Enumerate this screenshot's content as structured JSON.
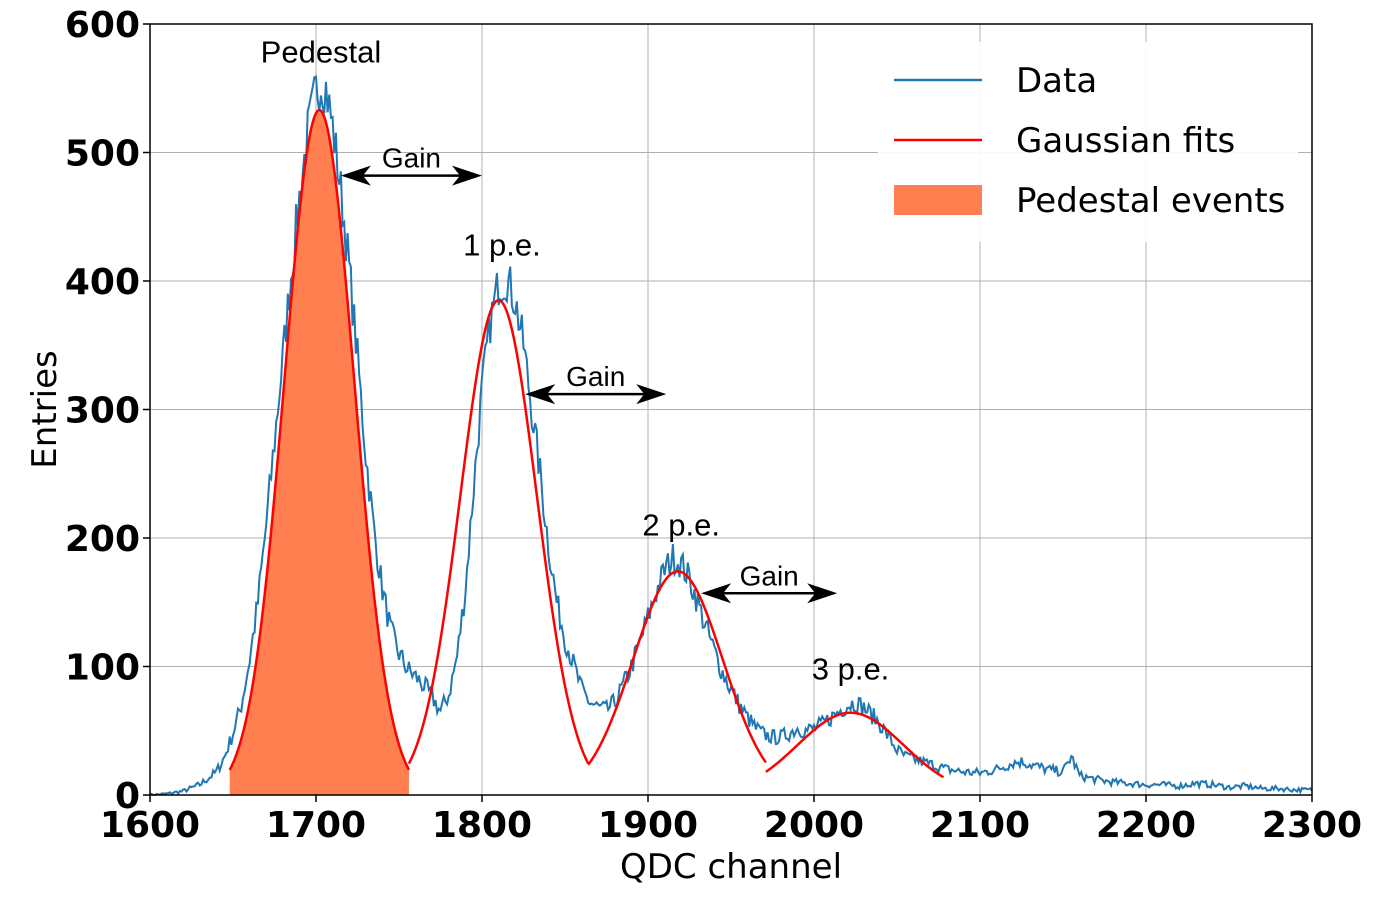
{
  "chart_data": {
    "type": "line",
    "xlabel": "QDC channel",
    "ylabel": "Entries",
    "xlim": [
      1600,
      2300
    ],
    "ylim": [
      0,
      600
    ],
    "xticks": [
      1600,
      1700,
      1800,
      1900,
      2000,
      2100,
      2200,
      2300
    ],
    "yticks": [
      0,
      100,
      200,
      300,
      400,
      500,
      600
    ],
    "grid": true,
    "legend_position": "top-right",
    "legend": [
      {
        "label": "Data",
        "kind": "line",
        "color": "#1f77b4"
      },
      {
        "label": "Gaussian fits",
        "kind": "line",
        "color": "#ff0000"
      },
      {
        "label": "Pedestal events",
        "kind": "patch",
        "color": "#ff7f50"
      }
    ],
    "data_series": {
      "name": "Data",
      "color": "#1f77b4",
      "points": [
        [
          1600,
          0
        ],
        [
          1610,
          1
        ],
        [
          1620,
          3
        ],
        [
          1630,
          8
        ],
        [
          1640,
          18
        ],
        [
          1645,
          30
        ],
        [
          1650,
          48
        ],
        [
          1655,
          70
        ],
        [
          1660,
          105
        ],
        [
          1665,
          150
        ],
        [
          1670,
          210
        ],
        [
          1675,
          275
        ],
        [
          1680,
          340
        ],
        [
          1685,
          405
        ],
        [
          1690,
          465
        ],
        [
          1695,
          515
        ],
        [
          1700,
          548
        ],
        [
          1703,
          555
        ],
        [
          1706,
          550
        ],
        [
          1710,
          520
        ],
        [
          1715,
          470
        ],
        [
          1720,
          410
        ],
        [
          1725,
          340
        ],
        [
          1730,
          265
        ],
        [
          1735,
          205
        ],
        [
          1740,
          160
        ],
        [
          1745,
          128
        ],
        [
          1750,
          110
        ],
        [
          1755,
          98
        ],
        [
          1760,
          92
        ],
        [
          1765,
          85
        ],
        [
          1770,
          76
        ],
        [
          1775,
          65
        ],
        [
          1780,
          78
        ],
        [
          1785,
          108
        ],
        [
          1790,
          160
        ],
        [
          1795,
          240
        ],
        [
          1800,
          315
        ],
        [
          1805,
          368
        ],
        [
          1810,
          398
        ],
        [
          1815,
          402
        ],
        [
          1820,
          385
        ],
        [
          1825,
          350
        ],
        [
          1830,
          300
        ],
        [
          1835,
          250
        ],
        [
          1840,
          195
        ],
        [
          1845,
          150
        ],
        [
          1850,
          122
        ],
        [
          1855,
          102
        ],
        [
          1860,
          82
        ],
        [
          1865,
          72
        ],
        [
          1870,
          68
        ],
        [
          1875,
          66
        ],
        [
          1880,
          72
        ],
        [
          1885,
          85
        ],
        [
          1890,
          100
        ],
        [
          1895,
          118
        ],
        [
          1900,
          138
        ],
        [
          1905,
          158
        ],
        [
          1910,
          175
        ],
        [
          1915,
          185
        ],
        [
          1920,
          180
        ],
        [
          1925,
          168
        ],
        [
          1930,
          150
        ],
        [
          1935,
          130
        ],
        [
          1940,
          112
        ],
        [
          1945,
          95
        ],
        [
          1950,
          82
        ],
        [
          1955,
          70
        ],
        [
          1960,
          60
        ],
        [
          1965,
          52
        ],
        [
          1970,
          47
        ],
        [
          1975,
          45
        ],
        [
          1980,
          45
        ],
        [
          1985,
          48
        ],
        [
          1990,
          52
        ],
        [
          1995,
          50
        ],
        [
          2000,
          52
        ],
        [
          2005,
          55
        ],
        [
          2010,
          60
        ],
        [
          2015,
          65
        ],
        [
          2020,
          70
        ],
        [
          2025,
          72
        ],
        [
          2030,
          68
        ],
        [
          2035,
          62
        ],
        [
          2040,
          55
        ],
        [
          2045,
          45
        ],
        [
          2050,
          35
        ],
        [
          2055,
          30
        ],
        [
          2060,
          28
        ],
        [
          2065,
          26
        ],
        [
          2070,
          24
        ],
        [
          2075,
          22
        ],
        [
          2080,
          20
        ],
        [
          2090,
          18
        ],
        [
          2100,
          17
        ],
        [
          2110,
          20
        ],
        [
          2120,
          25
        ],
        [
          2125,
          26
        ],
        [
          2130,
          24
        ],
        [
          2140,
          20
        ],
        [
          2150,
          18
        ],
        [
          2155,
          30
        ],
        [
          2160,
          15
        ],
        [
          2170,
          12
        ],
        [
          2180,
          10
        ],
        [
          2190,
          9
        ],
        [
          2200,
          8
        ],
        [
          2210,
          8
        ],
        [
          2220,
          7
        ],
        [
          2230,
          9
        ],
        [
          2240,
          8
        ],
        [
          2250,
          6
        ],
        [
          2260,
          7
        ],
        [
          2270,
          5
        ],
        [
          2280,
          5
        ],
        [
          2290,
          4
        ],
        [
          2300,
          4
        ]
      ]
    },
    "gaussian_fits": [
      {
        "name": "Pedestal",
        "mean": 1702,
        "sigma": 21,
        "amplitude": 533,
        "range": [
          1648,
          1756
        ]
      },
      {
        "name": "1 p.e.",
        "mean": 1810,
        "sigma": 23,
        "amplitude": 385,
        "range": [
          1756,
          1864
        ]
      },
      {
        "name": "2 p.e.",
        "mean": 1918,
        "sigma": 27,
        "amplitude": 174,
        "range": [
          1864,
          1971
        ]
      },
      {
        "name": "3 p.e.",
        "mean": 2022,
        "sigma": 32,
        "amplitude": 64,
        "range": [
          1971,
          2078
        ]
      }
    ],
    "fill_region": {
      "name": "Pedestal events",
      "range": [
        1648,
        1756
      ],
      "color": "#ff7f50"
    },
    "annotations": [
      {
        "text": "Pedestal",
        "x": 1703,
        "y": 570
      },
      {
        "text": "1 p.e.",
        "x": 1812,
        "y": 420
      },
      {
        "text": "2 p.e.",
        "x": 1920,
        "y": 202
      },
      {
        "text": "3 p.e.",
        "x": 2022,
        "y": 90
      }
    ],
    "gain_arrows": [
      {
        "text": "Gain",
        "x_start": 1715,
        "x_end": 1800,
        "y": 482
      },
      {
        "text": "Gain",
        "x_start": 1826,
        "x_end": 1911,
        "y": 312
      },
      {
        "text": "Gain",
        "x_start": 1932,
        "x_end": 2014,
        "y": 157
      }
    ]
  }
}
